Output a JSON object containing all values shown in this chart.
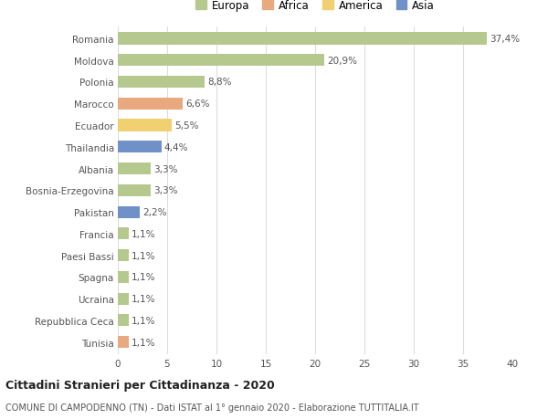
{
  "countries": [
    "Romania",
    "Moldova",
    "Polonia",
    "Marocco",
    "Ecuador",
    "Thailandia",
    "Albania",
    "Bosnia-Erzegovina",
    "Pakistan",
    "Francia",
    "Paesi Bassi",
    "Spagna",
    "Ucraina",
    "Repubblica Ceca",
    "Tunisia"
  ],
  "values": [
    37.4,
    20.9,
    8.8,
    6.6,
    5.5,
    4.4,
    3.3,
    3.3,
    2.2,
    1.1,
    1.1,
    1.1,
    1.1,
    1.1,
    1.1
  ],
  "labels": [
    "37,4%",
    "20,9%",
    "8,8%",
    "6,6%",
    "5,5%",
    "4,4%",
    "3,3%",
    "3,3%",
    "2,2%",
    "1,1%",
    "1,1%",
    "1,1%",
    "1,1%",
    "1,1%",
    "1,1%"
  ],
  "continents": [
    "Europa",
    "Europa",
    "Europa",
    "Africa",
    "America",
    "Asia",
    "Europa",
    "Europa",
    "Asia",
    "Europa",
    "Europa",
    "Europa",
    "Europa",
    "Europa",
    "Africa"
  ],
  "continent_colors": {
    "Europa": "#b5c98e",
    "Africa": "#e8a97e",
    "America": "#f0d070",
    "Asia": "#7090c8"
  },
  "legend_order": [
    "Europa",
    "Africa",
    "America",
    "Asia"
  ],
  "legend_colors": [
    "#b5c98e",
    "#e8a97e",
    "#f0d070",
    "#7090c8"
  ],
  "xlim": [
    0,
    40
  ],
  "xticks": [
    0,
    5,
    10,
    15,
    20,
    25,
    30,
    35,
    40
  ],
  "title": "Cittadini Stranieri per Cittadinanza - 2020",
  "subtitle": "COMUNE DI CAMPODENNO (TN) - Dati ISTAT al 1° gennaio 2020 - Elaborazione TUTTITALIA.IT",
  "bg_color": "#ffffff",
  "grid_color": "#dddddd",
  "bar_height": 0.55,
  "label_fontsize": 7.5,
  "tick_fontsize": 7.5,
  "title_fontsize": 9,
  "subtitle_fontsize": 7.0,
  "legend_fontsize": 8.5
}
